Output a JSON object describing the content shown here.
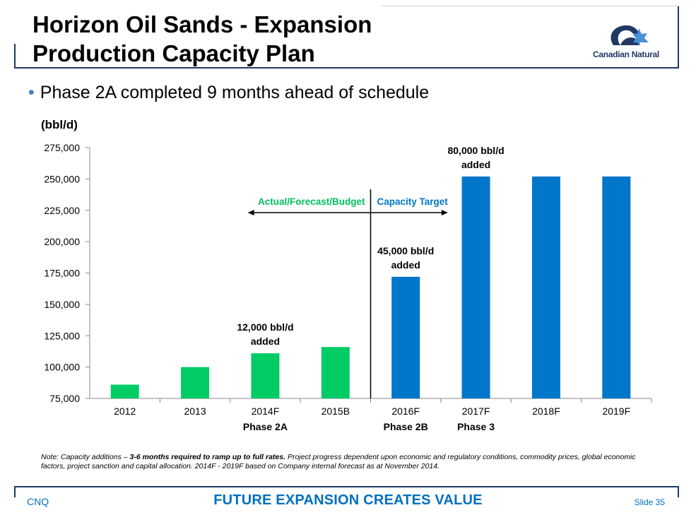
{
  "header": {
    "title_line1": "Horizon Oil Sands - Expansion",
    "title_line2": "Production Capacity Plan",
    "logo_text": "Canadian Natural"
  },
  "bullet": "Phase 2A completed 9 months ahead of schedule",
  "colors": {
    "green": "#00cc66",
    "blue": "#0077c8",
    "navy": "#1f3864",
    "accent": "#0070c0"
  },
  "chart_data": {
    "type": "bar",
    "ylabel": "(bbl/d)",
    "ylim": [
      75000,
      275000
    ],
    "yticks": [
      "75,000",
      "100,000",
      "125,000",
      "150,000",
      "175,000",
      "200,000",
      "225,000",
      "250,000",
      "275,000"
    ],
    "yticks_values": [
      75000,
      100000,
      125000,
      150000,
      175000,
      200000,
      225000,
      250000,
      275000
    ],
    "categories": [
      "2012",
      "2013",
      "2014F",
      "2015B",
      "2016F",
      "2017F",
      "2018F",
      "2019F"
    ],
    "category_sublabels": [
      "",
      "",
      "Phase 2A",
      "",
      "Phase 2B",
      "Phase 3",
      "",
      ""
    ],
    "values": [
      86000,
      100000,
      111000,
      116000,
      172000,
      252000,
      252000,
      252000
    ],
    "bar_colors": [
      "#00cc66",
      "#00cc66",
      "#00cc66",
      "#00cc66",
      "#0077c8",
      "#0077c8",
      "#0077c8",
      "#0077c8"
    ],
    "annotations": [
      {
        "category_index": 2,
        "line1": "12,000 bbl/d",
        "line2": "added"
      },
      {
        "category_index": 4,
        "line1": "45,000 bbl/d",
        "line2": "added"
      },
      {
        "category_index": 5,
        "line1": "80,000 bbl/d",
        "line2": "added"
      }
    ],
    "region_labels": {
      "left": "Actual/Forecast/Budget",
      "right": "Capacity Target"
    }
  },
  "note": {
    "prefix": "Note: Capacity additions – ",
    "emphasis": "3-6 months required to ramp up to full rates.",
    "rest": " Project progress dependent upon economic and regulatory conditions, commodity prices, global economic factors, project sanction and capital allocation. 2014F - 2019F based on Company internal forecast as at November 2014."
  },
  "footer": {
    "left": "CNQ",
    "center": "FUTURE EXPANSION CREATES VALUE",
    "right": "Slide 35"
  }
}
